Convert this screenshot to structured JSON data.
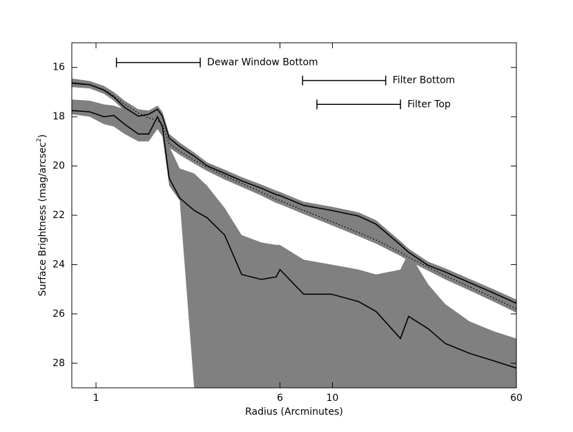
{
  "chart_data": {
    "type": "line",
    "x_label": "Radius (Arcminutes)",
    "y_label": "Surface Brightness (mag/arcsec",
    "y_label_sup": "2",
    "y_label_end": ")",
    "xscale": "log",
    "xlim": [
      0.79,
      60
    ],
    "ylim": [
      15,
      29
    ],
    "y_inverted": true,
    "xticks": [
      1,
      6,
      10,
      60
    ],
    "yticks": [
      16,
      18,
      20,
      22,
      24,
      26,
      28
    ],
    "x": [
      0.79,
      0.94,
      1.08,
      1.19,
      1.32,
      1.51,
      1.67,
      1.82,
      1.91,
      2.04,
      2.26,
      2.6,
      2.95,
      3.5,
      4.13,
      5.0,
      5.78,
      6.0,
      7.56,
      9.9,
      12.9,
      15.3,
      19.4,
      21,
      25.4,
      30,
      38,
      48,
      60
    ],
    "bands": [
      {
        "color": "#808080",
        "lower": [
          16.45,
          16.55,
          16.75,
          17.0,
          17.35,
          17.7,
          17.75,
          17.55,
          17.8,
          18.7,
          19.05,
          19.45,
          19.85,
          20.15,
          20.45,
          20.75,
          21.0,
          21.05,
          21.45,
          21.65,
          21.88,
          22.2,
          23.05,
          23.35,
          23.88,
          24.15,
          24.58,
          25.0,
          25.42
        ],
        "upper": [
          16.8,
          16.85,
          17.07,
          17.35,
          17.77,
          18.13,
          18.2,
          18.3,
          18.45,
          19.25,
          19.55,
          19.9,
          20.2,
          20.55,
          20.85,
          21.2,
          21.5,
          21.55,
          21.95,
          22.4,
          22.85,
          23.15,
          23.65,
          23.85,
          24.25,
          24.6,
          25.05,
          25.5,
          25.95
        ]
      },
      {
        "color": "#808080",
        "lower": [
          17.3,
          17.35,
          17.5,
          17.55,
          17.7,
          18.0,
          18.0,
          17.7,
          18.0,
          19.2,
          20.1,
          20.3,
          20.8,
          21.7,
          22.8,
          23.1,
          23.2,
          23.2,
          23.8,
          24.0,
          24.2,
          24.4,
          24.2,
          23.5,
          24.8,
          25.6,
          26.3,
          26.7,
          27.0
        ],
        "upper": [
          17.9,
          18.0,
          18.3,
          18.4,
          18.7,
          19.0,
          19.0,
          18.5,
          18.8,
          20.8,
          21.4,
          29,
          29,
          29,
          29,
          29,
          29,
          29,
          29,
          29,
          29,
          29,
          29,
          29,
          29,
          29,
          29,
          29,
          29
        ]
      }
    ],
    "series": [
      {
        "color": "#000000",
        "style": "solid",
        "values": [
          16.64,
          16.7,
          16.92,
          17.2,
          17.62,
          17.98,
          17.9,
          17.7,
          17.98,
          18.87,
          19.21,
          19.6,
          19.99,
          20.3,
          20.6,
          20.9,
          21.16,
          21.2,
          21.6,
          21.8,
          22.03,
          22.36,
          23.2,
          23.5,
          24.03,
          24.3,
          24.73,
          25.15,
          25.57
        ]
      },
      {
        "color": "#000000",
        "style": "dotted",
        "values": [
          16.6,
          16.7,
          16.9,
          17.15,
          17.5,
          17.85,
          18.05,
          18.15,
          18.3,
          19.1,
          19.4,
          19.75,
          20.05,
          20.4,
          20.7,
          21.05,
          21.35,
          21.4,
          21.8,
          22.25,
          22.7,
          23.0,
          23.5,
          23.7,
          24.1,
          24.45,
          24.9,
          25.35,
          25.8
        ]
      },
      {
        "color": "#000000",
        "style": "solid",
        "values": [
          17.75,
          17.8,
          18.0,
          17.95,
          18.3,
          18.7,
          18.7,
          18.0,
          18.4,
          20.5,
          21.3,
          21.8,
          22.1,
          22.8,
          24.4,
          24.6,
          24.5,
          24.2,
          25.2,
          25.2,
          25.5,
          25.9,
          27.0,
          26.1,
          26.6,
          27.2,
          27.6,
          27.9,
          28.2
        ]
      }
    ],
    "annotations": [
      {
        "text": "Dewar Window Bottom",
        "x_range": [
          1.22,
          2.76
        ],
        "y": 15.8
      },
      {
        "text": "Filter Bottom",
        "x_range": [
          7.48,
          16.8
        ],
        "y": 16.53
      },
      {
        "text": "Filter Top",
        "x_range": [
          8.6,
          19.4
        ],
        "y": 17.5
      }
    ]
  }
}
